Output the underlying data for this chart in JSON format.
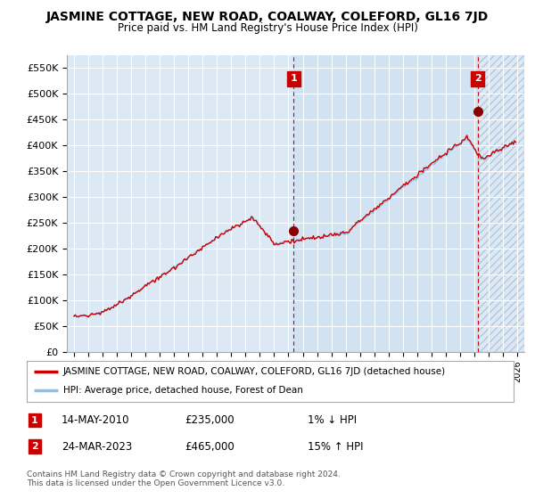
{
  "title": "JASMINE COTTAGE, NEW ROAD, COALWAY, COLEFORD, GL16 7JD",
  "subtitle": "Price paid vs. HM Land Registry's House Price Index (HPI)",
  "bg_color": "#dce9f5",
  "bg_color_highlight": "#c8dcf0",
  "grid_color": "#ffffff",
  "ylim": [
    0,
    575000
  ],
  "yticks": [
    0,
    50000,
    100000,
    150000,
    200000,
    250000,
    300000,
    350000,
    400000,
    450000,
    500000,
    550000
  ],
  "ytick_labels": [
    "£0",
    "£50K",
    "£100K",
    "£150K",
    "£200K",
    "£250K",
    "£300K",
    "£350K",
    "£400K",
    "£450K",
    "£500K",
    "£550K"
  ],
  "sale1_x": 2010.37,
  "sale1_y": 235000,
  "sale2_x": 2023.23,
  "sale2_y": 465000,
  "hpi_line_color": "#90c0e8",
  "price_line_color": "#cc0000",
  "vline_color": "#cc0000",
  "marker_color": "#880000",
  "legend_label1": "JASMINE COTTAGE, NEW ROAD, COALWAY, COLEFORD, GL16 7JD (detached house)",
  "legend_label2": "HPI: Average price, detached house, Forest of Dean",
  "table_row1": [
    "1",
    "14-MAY-2010",
    "£235,000",
    "1% ↓ HPI"
  ],
  "table_row2": [
    "2",
    "24-MAR-2023",
    "£465,000",
    "15% ↑ HPI"
  ],
  "footer": "Contains HM Land Registry data © Crown copyright and database right 2024.\nThis data is licensed under the Open Government Licence v3.0.",
  "xlim_start": 1994.5,
  "xlim_end": 2026.5
}
